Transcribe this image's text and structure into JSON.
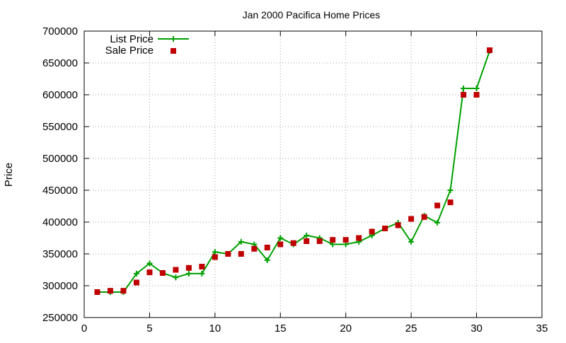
{
  "chart_data": {
    "type": "line",
    "title": "Jan 2000 Pacifica Home Prices",
    "xlabel": "",
    "ylabel": "Price",
    "xlim": [
      0,
      35
    ],
    "ylim": [
      250000,
      700000
    ],
    "x_ticks": [
      0,
      5,
      10,
      15,
      20,
      25,
      30,
      35
    ],
    "y_ticks": [
      250000,
      300000,
      350000,
      400000,
      450000,
      500000,
      550000,
      600000,
      650000,
      700000
    ],
    "grid": true,
    "legend_position": "top-left",
    "series": [
      {
        "name": "List Price",
        "style": "line-with-plus-markers",
        "color": "#00a000",
        "x": [
          1,
          2,
          3,
          4,
          5,
          6,
          7,
          8,
          9,
          10,
          11,
          12,
          13,
          14,
          15,
          16,
          17,
          18,
          19,
          20,
          21,
          22,
          23,
          24,
          25,
          26,
          27,
          28,
          29,
          30,
          31
        ],
        "values": [
          290000,
          290000,
          290000,
          319000,
          335000,
          320000,
          313000,
          319000,
          319000,
          353000,
          350000,
          369000,
          365000,
          340000,
          375000,
          365000,
          379000,
          375000,
          365000,
          365000,
          369000,
          379000,
          390000,
          399000,
          369000,
          410000,
          399000,
          450000,
          610000,
          610000,
          669000
        ]
      },
      {
        "name": "Sale Price",
        "style": "square-markers",
        "color": "#c00000",
        "x": [
          1,
          2,
          3,
          4,
          5,
          6,
          7,
          8,
          9,
          10,
          11,
          12,
          13,
          14,
          15,
          16,
          17,
          18,
          19,
          20,
          21,
          22,
          23,
          24,
          25,
          26,
          27,
          28,
          29,
          30,
          31
        ],
        "values": [
          290000,
          292000,
          292000,
          305000,
          321000,
          320000,
          325000,
          328000,
          330000,
          345000,
          350000,
          350000,
          358000,
          360000,
          365000,
          367000,
          370000,
          370000,
          372000,
          372000,
          375000,
          385000,
          390000,
          395000,
          405000,
          408000,
          426000,
          431000,
          600000,
          600000,
          670000
        ]
      }
    ]
  }
}
